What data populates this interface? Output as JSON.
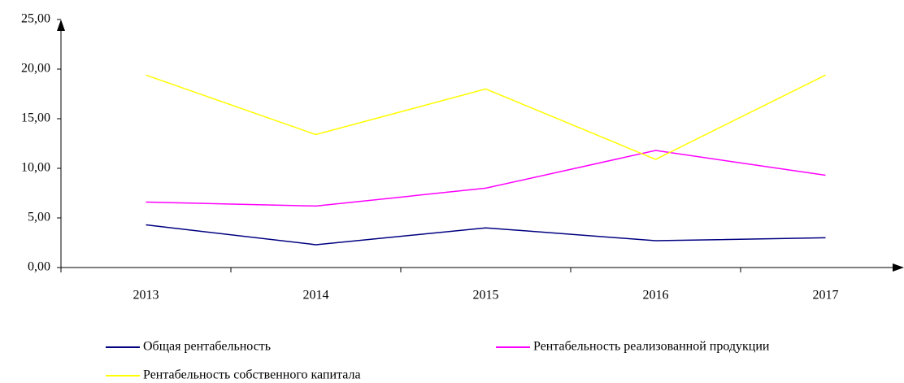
{
  "chart_data": {
    "type": "line",
    "categories": [
      "2013",
      "2014",
      "2015",
      "2016",
      "2017"
    ],
    "series": [
      {
        "name": "Общая рентабельность",
        "color": "#000080",
        "values": [
          4.3,
          2.3,
          4.0,
          2.7,
          3.0
        ]
      },
      {
        "name": "Рентабельность реализованной продукции",
        "color": "#ff00ff",
        "values": [
          6.6,
          6.2,
          8.0,
          11.8,
          9.3
        ]
      },
      {
        "name": "Рентабельность собственного капитала",
        "color": "#ffff00",
        "values": [
          19.4,
          13.4,
          18.0,
          10.9,
          19.4
        ]
      }
    ],
    "ylim": [
      0,
      25
    ],
    "yticks": [
      {
        "value": 0,
        "label": "0,00"
      },
      {
        "value": 5,
        "label": "5,00"
      },
      {
        "value": 10,
        "label": "10,00"
      },
      {
        "value": 15,
        "label": "15,00"
      },
      {
        "value": 20,
        "label": "20,00"
      },
      {
        "value": 25,
        "label": "25,00"
      }
    ],
    "grid": false,
    "legend": "bottom"
  }
}
